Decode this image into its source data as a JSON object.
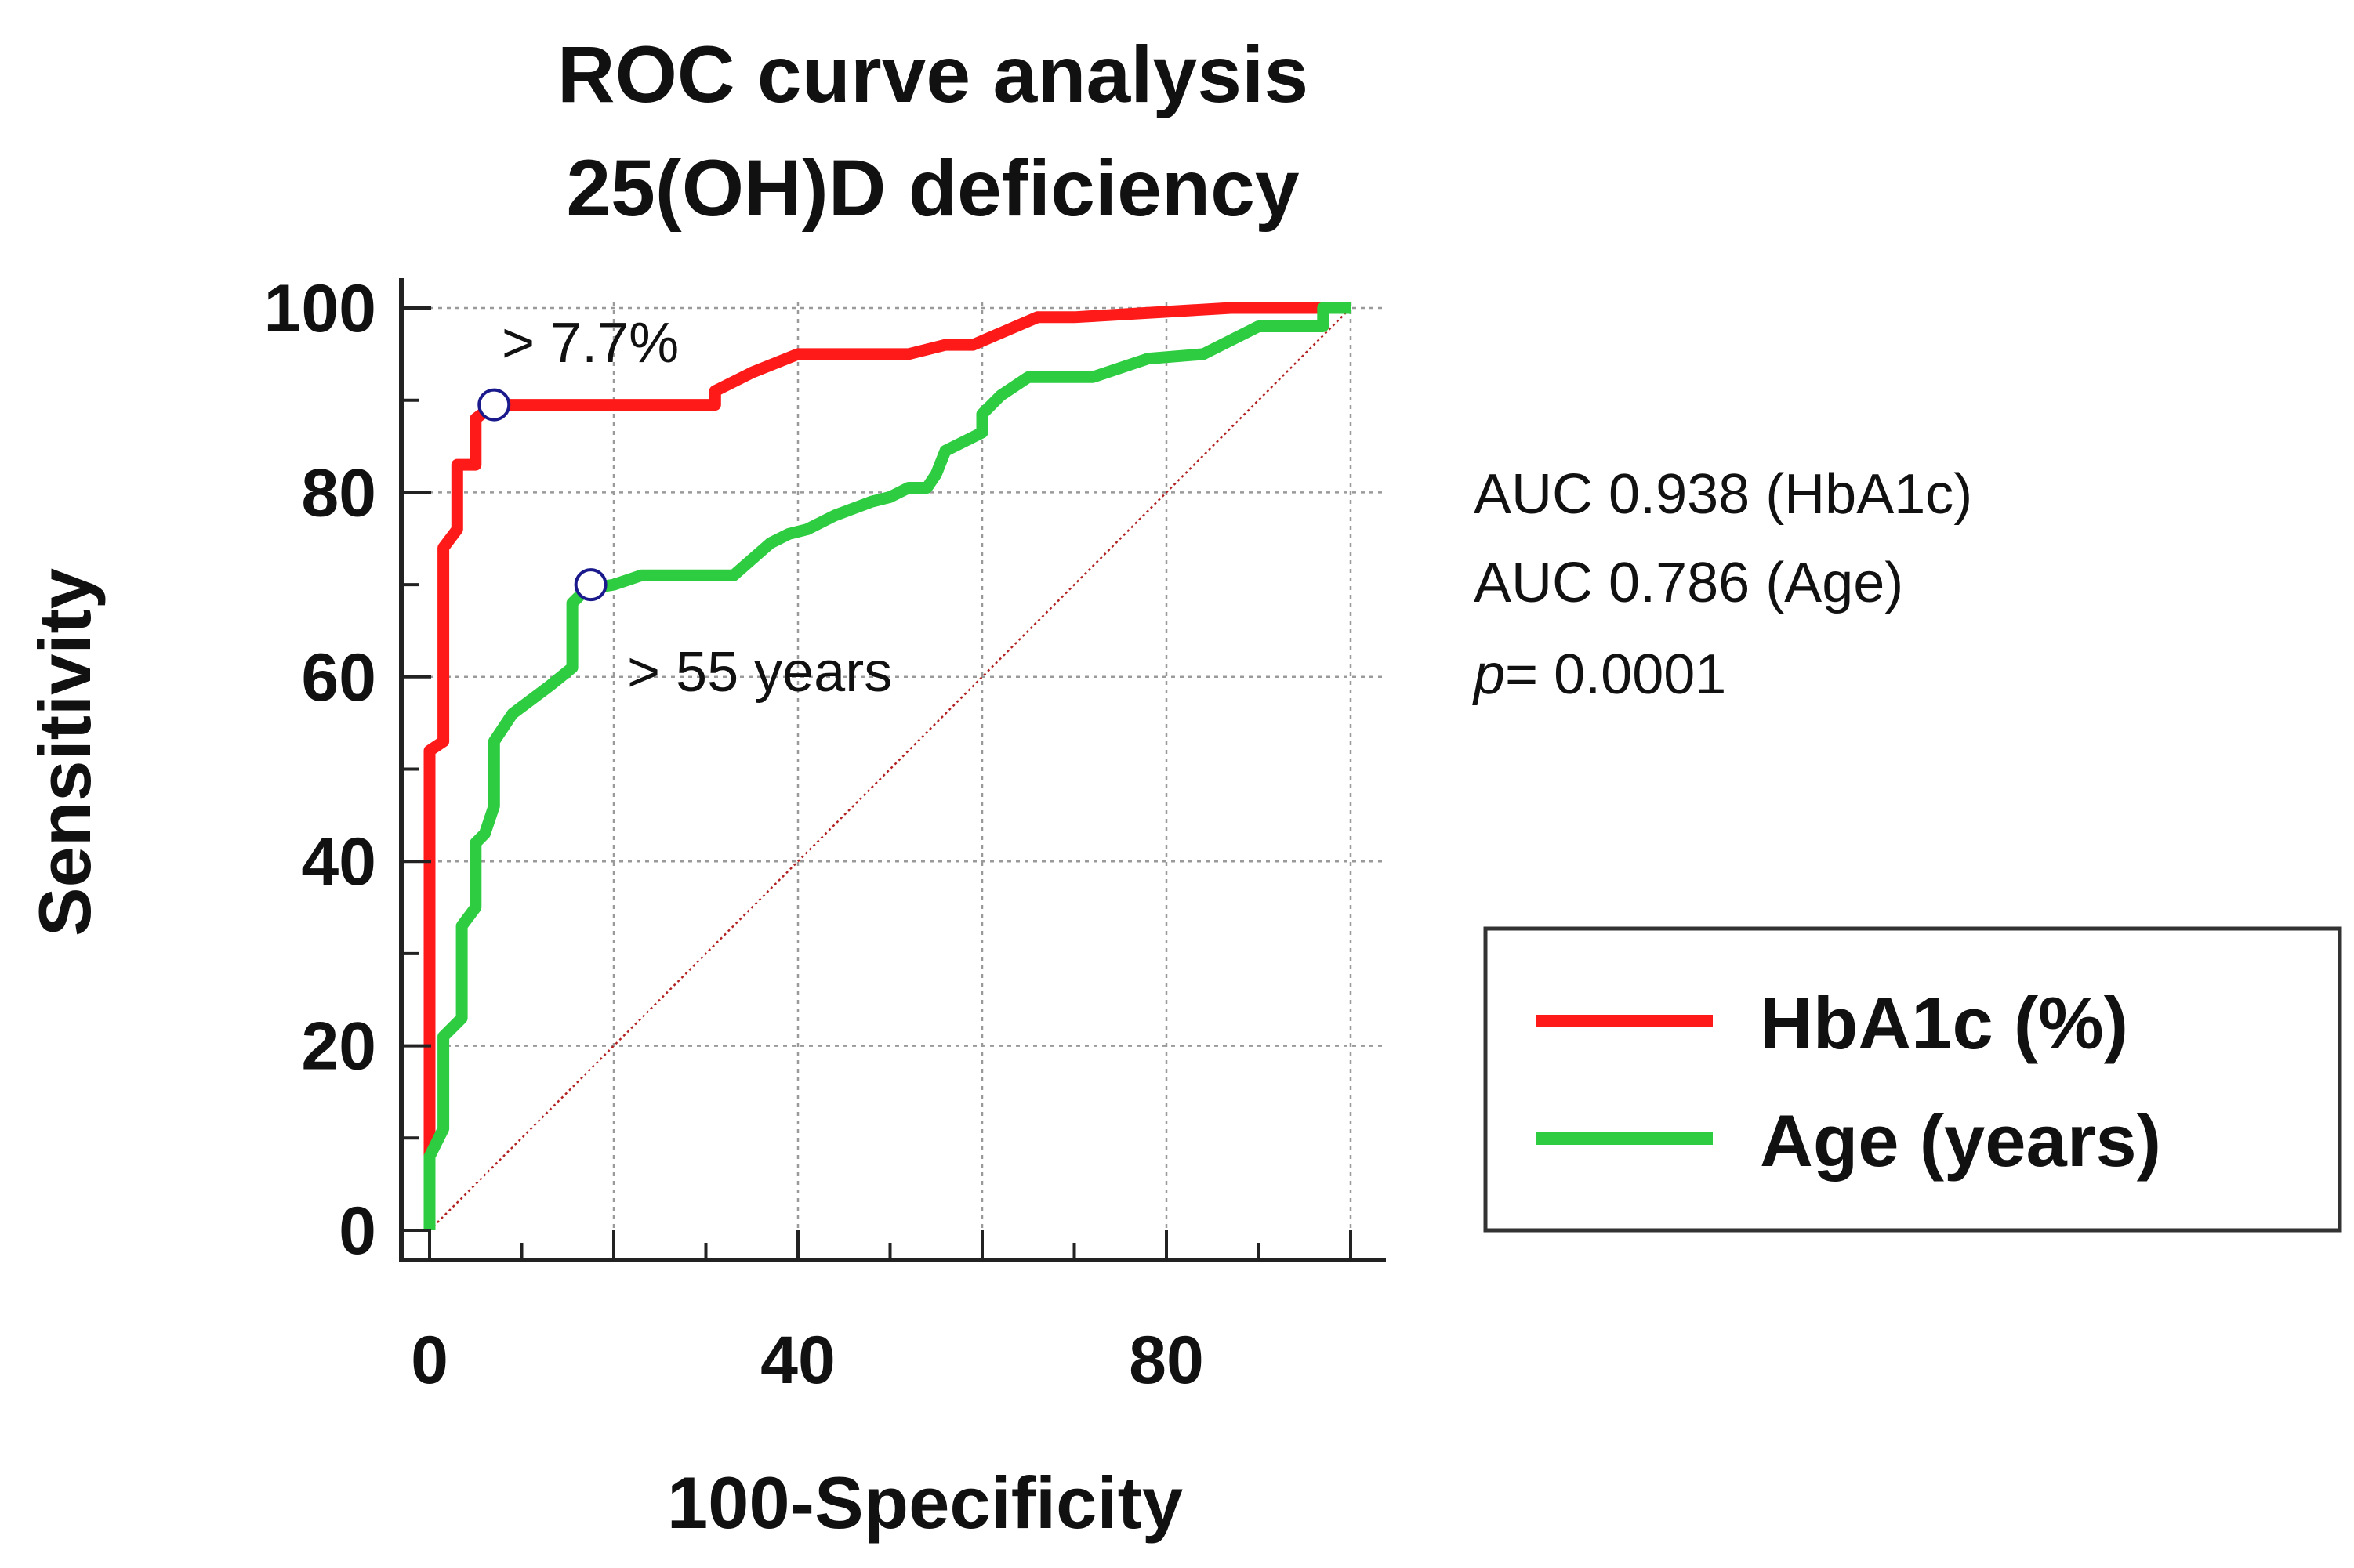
{
  "chart_data": {
    "type": "line",
    "title": [
      "ROC curve analysis",
      "25(OH)D deficiency"
    ],
    "xlabel": "100-Specificity",
    "ylabel": "Sensitivity",
    "xlim": [
      0,
      100
    ],
    "ylim": [
      0,
      100
    ],
    "x_ticks": [
      0,
      40,
      80
    ],
    "y_ticks": [
      0,
      20,
      40,
      60,
      80,
      100
    ],
    "grid": true,
    "series": [
      {
        "name": "HbA1c (%)",
        "color": "#ff1a1a",
        "points": [
          [
            0,
            0
          ],
          [
            0,
            9
          ],
          [
            0,
            52
          ],
          [
            1.5,
            53
          ],
          [
            1.5,
            74
          ],
          [
            3,
            76
          ],
          [
            3,
            83
          ],
          [
            5,
            83
          ],
          [
            5,
            88
          ],
          [
            7,
            89.5
          ],
          [
            31,
            89.5
          ],
          [
            31,
            91
          ],
          [
            35,
            93
          ],
          [
            40,
            95
          ],
          [
            52,
            95
          ],
          [
            56,
            96
          ],
          [
            59,
            96
          ],
          [
            66,
            99
          ],
          [
            70,
            99
          ],
          [
            87,
            100
          ],
          [
            100,
            100
          ]
        ],
        "cutoff": {
          "x": 7,
          "y": 89.5,
          "label": "> 7.7%"
        },
        "auc_label": "AUC 0.938 (HbA1c)"
      },
      {
        "name": "Age (years)",
        "color": "#2ecc40",
        "points": [
          [
            0,
            0
          ],
          [
            0,
            8
          ],
          [
            1.5,
            11
          ],
          [
            1.5,
            21
          ],
          [
            3.5,
            23
          ],
          [
            3.5,
            33
          ],
          [
            5,
            35
          ],
          [
            5,
            42
          ],
          [
            6,
            43
          ],
          [
            7,
            46
          ],
          [
            7,
            53
          ],
          [
            9,
            56
          ],
          [
            13,
            59
          ],
          [
            15.5,
            61
          ],
          [
            15.5,
            68
          ],
          [
            17,
            69.5
          ],
          [
            20,
            70
          ],
          [
            23,
            71
          ],
          [
            33,
            71
          ],
          [
            37,
            74.5
          ],
          [
            39,
            75.5
          ],
          [
            41,
            76
          ],
          [
            44,
            77.5
          ],
          [
            48,
            79
          ],
          [
            50,
            79.5
          ],
          [
            52,
            80.5
          ],
          [
            54,
            80.5
          ],
          [
            55,
            82
          ],
          [
            56,
            84.5
          ],
          [
            58,
            85.5
          ],
          [
            60,
            86.5
          ],
          [
            60,
            88.5
          ],
          [
            62,
            90.5
          ],
          [
            65,
            92.5
          ],
          [
            72,
            92.5
          ],
          [
            78,
            94.5
          ],
          [
            84,
            95
          ],
          [
            90,
            98
          ],
          [
            97,
            98
          ],
          [
            97,
            100
          ],
          [
            100,
            100
          ]
        ],
        "cutoff": {
          "x": 17.5,
          "y": 70,
          "label": "> 55 years"
        },
        "auc_label": "AUC 0.786 (Age)"
      }
    ],
    "reference_line": {
      "from": [
        0,
        0
      ],
      "to": [
        100,
        100
      ],
      "color": "#b22222"
    },
    "stats": {
      "p_symbol": "p",
      "p_text": "= 0.0001"
    },
    "legend_position": "right"
  }
}
